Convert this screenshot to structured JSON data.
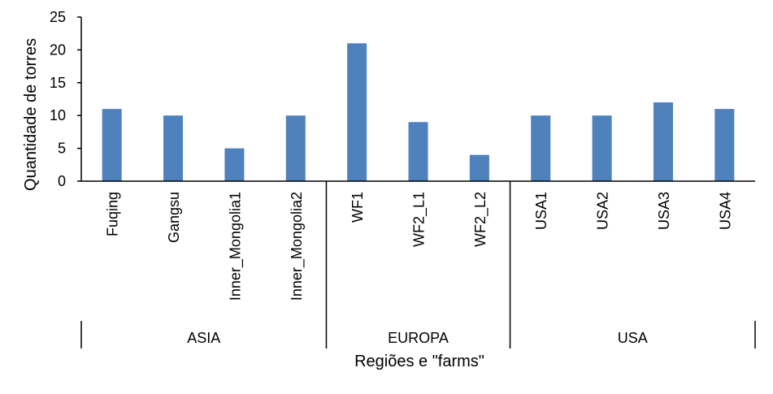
{
  "chart_data": {
    "type": "bar",
    "categories": [
      "Fuqing",
      "Gangsu",
      "Inner_Mongolia1",
      "Inner_Mongolia2",
      "WF1",
      "WF2_L1",
      "WF2_L2",
      "USA1",
      "USA2",
      "USA3",
      "USA4"
    ],
    "groups": [
      {
        "label": "ASIA",
        "count": 4
      },
      {
        "label": "EUROPA",
        "count": 3
      },
      {
        "label": "USA",
        "count": 4
      }
    ],
    "values": [
      11,
      10,
      5,
      10,
      21,
      9,
      4,
      10,
      10,
      12,
      11
    ],
    "yticks": [
      "0",
      "5",
      "10",
      "15",
      "20",
      "25"
    ],
    "ylim": [
      0,
      25
    ],
    "xlabel": "Regiões e \"farms\"",
    "ylabel": "Quantidade  de torres",
    "bar_color": "#4f81bd",
    "grid": false,
    "legend": "none"
  }
}
